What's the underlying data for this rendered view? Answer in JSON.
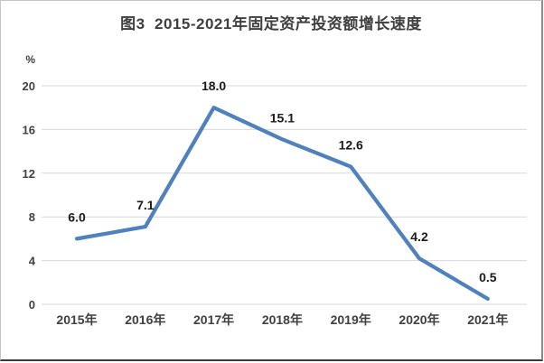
{
  "title": "图3  2015-2021年固定资产投资额增长速度",
  "chart_data": {
    "type": "line",
    "title": "图3  2015-2021年固定资产投资额增长速度",
    "categories": [
      "2015年",
      "2016年",
      "2017年",
      "2018年",
      "2019年",
      "2020年",
      "2021年"
    ],
    "values": [
      6.0,
      7.1,
      18.0,
      15.1,
      12.6,
      4.2,
      0.5
    ],
    "data_labels": [
      "6.0",
      "7.1",
      "18.0",
      "15.1",
      "12.6",
      "4.2",
      "0.5"
    ],
    "unit_label": "%",
    "yticks": [
      0,
      4,
      8,
      12,
      16,
      20
    ],
    "ytick_labels": [
      "0",
      "4",
      "8",
      "12",
      "16",
      "20"
    ],
    "ylim": [
      0,
      20
    ],
    "xlabel": "",
    "ylabel": "%",
    "grid": true,
    "legend": "none",
    "colors": {
      "line": "#4F81BD",
      "gridline": "#D9D9D9",
      "axis_text": "#404040",
      "data_label_text": "#1a1a1a",
      "title_text": "#3f3f3f",
      "background": "#ffffff"
    }
  }
}
